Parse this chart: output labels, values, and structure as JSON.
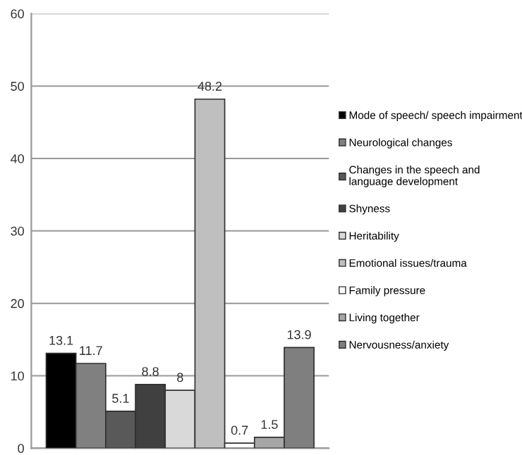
{
  "chart_data": {
    "type": "bar",
    "categories": [
      null
    ],
    "series": [
      {
        "name": "Mode of speech/ speech impairment",
        "color": "#000000",
        "values": [
          13.1
        ]
      },
      {
        "name": "Neurological changes",
        "color": "#808080",
        "values": [
          11.7
        ]
      },
      {
        "name": "Changes in the speech and\nlanguage development",
        "color": "#595959",
        "values": [
          5.1
        ]
      },
      {
        "name": "Shyness",
        "color": "#404040",
        "values": [
          8.8
        ]
      },
      {
        "name": "Heritability",
        "color": "#d9d9d9",
        "values": [
          8
        ]
      },
      {
        "name": "Emotional issues/trauma",
        "color": "#bfbfbf",
        "values": [
          48.2
        ]
      },
      {
        "name": "Family pressure",
        "color": "#ffffff",
        "values": [
          0.7
        ]
      },
      {
        "name": "Living together",
        "color": "#a6a6a6",
        "values": [
          1.5
        ]
      },
      {
        "name": "Nervousness/anxiety",
        "color": "#7f7f7f",
        "values": [
          13.9
        ]
      }
    ],
    "ylim": [
      0,
      60
    ],
    "yticks": [
      0,
      10,
      20,
      30,
      40,
      50,
      60
    ],
    "grid": "y",
    "legend": "right",
    "data_labels": true
  }
}
